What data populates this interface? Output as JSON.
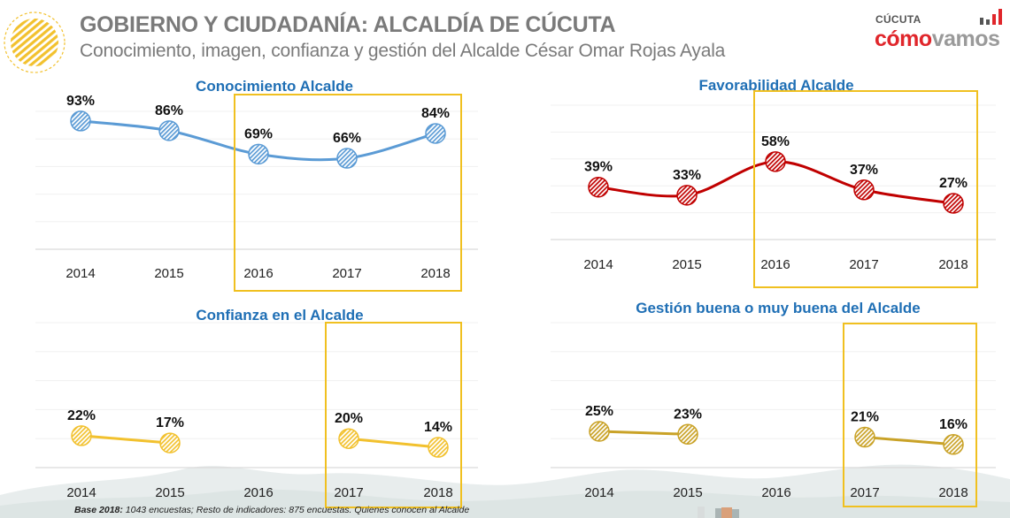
{
  "header": {
    "title": "GOBIERNO Y CIUDADANÍA: ALCALDÍA  DE CÚCUTA",
    "subtitle": "Conocimiento, imagen, confianza y gestión del Alcalde César Omar Rojas Ayala"
  },
  "logo": {
    "city": "CÚCUTA",
    "brand_part1": "cómo",
    "brand_part2": "vamos"
  },
  "footnote": {
    "bold": "Base 2018:",
    "text": " 1043 encuestas; Resto de indicadores: 875 encuestas. Quienes conocen al Alcalde"
  },
  "colors": {
    "title_blue": "#1f6fb5",
    "header_gray": "#7a7a7a",
    "highlight_box": "#f0c020",
    "brand_red": "#e0262b"
  },
  "chart_data": [
    {
      "type": "line",
      "title": "Conocimiento Alcalde",
      "categories": [
        "2014",
        "2015",
        "2016",
        "2017",
        "2018"
      ],
      "values": [
        93,
        86,
        69,
        66,
        84
      ],
      "labels": [
        "93%",
        "86%",
        "69%",
        "66%",
        "84%"
      ],
      "ylim": [
        0,
        100
      ],
      "grid": true,
      "color": "#5b9bd5",
      "fill": "#dce9f5",
      "highlight": [
        "2016",
        "2018"
      ]
    },
    {
      "type": "line",
      "title": "Favorabilidad Alcalde",
      "categories": [
        "2014",
        "2015",
        "2016",
        "2017",
        "2018"
      ],
      "values": [
        39,
        33,
        58,
        37,
        27
      ],
      "labels": [
        "39%",
        "33%",
        "58%",
        "37%",
        "27%"
      ],
      "ylim": [
        0,
        100
      ],
      "grid": true,
      "color": "#c00000",
      "fill": "#f3c9c9",
      "highlight": [
        "2016",
        "2018"
      ]
    },
    {
      "type": "line",
      "title": "Confianza en el Alcalde",
      "categories": [
        "2014",
        "2015",
        "2016",
        "2017",
        "2018"
      ],
      "values": [
        22,
        17,
        null,
        20,
        14
      ],
      "labels": [
        "22%",
        "17%",
        "",
        "20%",
        "14%"
      ],
      "ylim": [
        0,
        100
      ],
      "grid": true,
      "color": "#f2c12e",
      "fill": "#fbe49a",
      "highlight": [
        "2017",
        "2018"
      ]
    },
    {
      "type": "line",
      "title": "Gestión buena o muy buena del Alcalde",
      "categories": [
        "2014",
        "2015",
        "2016",
        "2017",
        "2018"
      ],
      "values": [
        25,
        23,
        null,
        21,
        16
      ],
      "labels": [
        "25%",
        "23%",
        "",
        "21%",
        "16%"
      ],
      "ylim": [
        0,
        100
      ],
      "grid": true,
      "color": "#c9a227",
      "fill": "#ead38a",
      "highlight": [
        "2017",
        "2018"
      ]
    }
  ]
}
